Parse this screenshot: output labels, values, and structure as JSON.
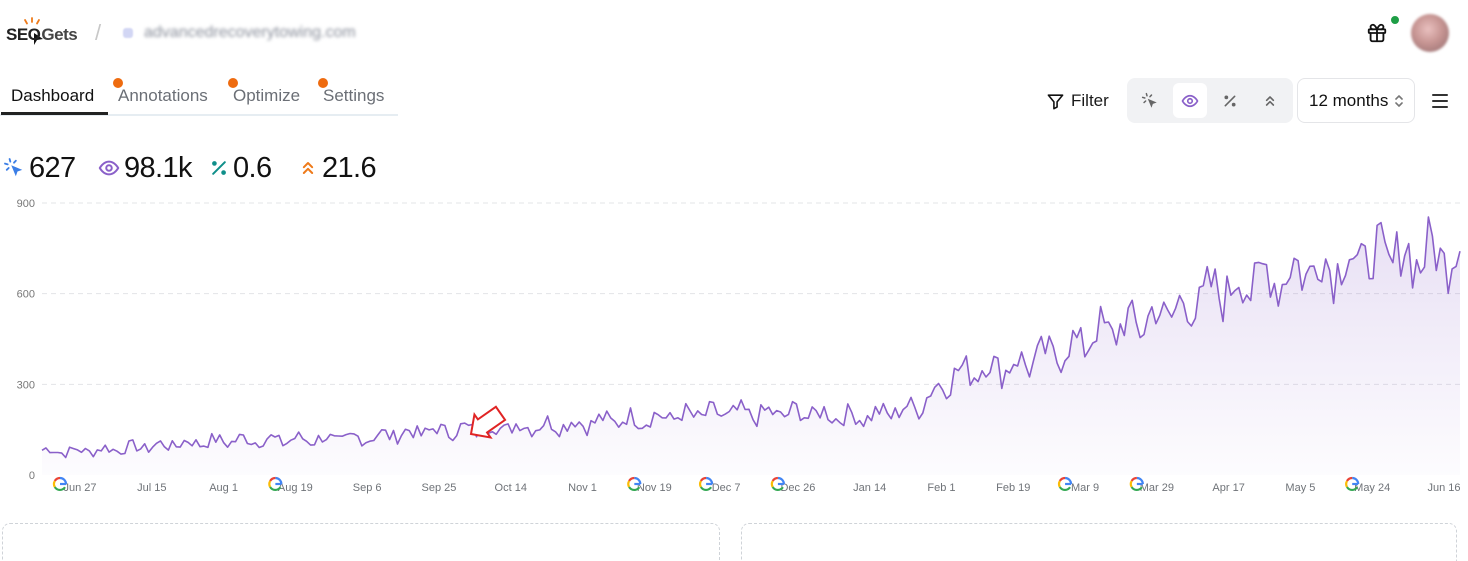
{
  "header": {
    "logo": {
      "part1": "SEO",
      "part2": "Gets"
    },
    "separator": "/",
    "site": "advancedrecoverytowing.com"
  },
  "tabs": [
    {
      "label": "Dashboard",
      "active": true,
      "notification": false
    },
    {
      "label": "Annotations",
      "active": false,
      "notification": true
    },
    {
      "label": "Optimize",
      "active": false,
      "notification": true
    },
    {
      "label": "Settings",
      "active": false,
      "notification": true
    }
  ],
  "toolbar": {
    "filter_label": "Filter",
    "metrics": [
      {
        "icon": "cursor-click-icon",
        "active": false
      },
      {
        "icon": "eye-icon",
        "active": true
      },
      {
        "icon": "percent-icon",
        "active": false
      },
      {
        "icon": "position-chevrons-icon",
        "active": false
      }
    ],
    "range_label": "12 months"
  },
  "stats": [
    {
      "icon": "cursor-click-icon",
      "value": "627",
      "color": "#3b7ee6"
    },
    {
      "icon": "eye-icon",
      "value": "98.1k",
      "color": "#8a60c9"
    },
    {
      "icon": "percent-icon",
      "value": "0.6",
      "color": "#0f8f8a"
    },
    {
      "icon": "position-chevrons-icon",
      "value": "21.6",
      "color": "#ee7a1a"
    }
  ],
  "chart_data": {
    "type": "area",
    "series": [
      {
        "name": "Impressions",
        "color": "#8a60c9"
      }
    ],
    "ylim": [
      0,
      900
    ],
    "yticks": [
      0,
      300,
      600,
      900
    ],
    "ytick_labels": [
      "0",
      "300",
      "600",
      "900"
    ],
    "xtick_labels": [
      "Jun 27",
      "Jul 15",
      "Aug 1",
      "Aug 19",
      "Sep 6",
      "Sep 25",
      "Oct 14",
      "Nov 1",
      "Nov 19",
      "Dec 7",
      "Dec 26",
      "Jan 14",
      "Feb 1",
      "Feb 19",
      "Mar 9",
      "Mar 29",
      "Apr 17",
      "May 5",
      "May 24",
      "Jun 16"
    ],
    "values": [
      82,
      78,
      84,
      90,
      98,
      108,
      112,
      118,
      114,
      120,
      116,
      128,
      138,
      146,
      150,
      156,
      162,
      168,
      172,
      182,
      188,
      194,
      200,
      202,
      200,
      206,
      200,
      192,
      204,
      226,
      320,
      356,
      360,
      384,
      416,
      470,
      494,
      530,
      560,
      610,
      640,
      660,
      690,
      708,
      716,
      722,
      730,
      735
    ],
    "google_update_markers": [
      "Jun 27",
      "Aug 19",
      "Nov 19",
      "Dec 7",
      "Dec 26",
      "Mar 9",
      "Mar 29",
      "May 24"
    ],
    "annotation": "red arrow pointing at Oct 9"
  }
}
